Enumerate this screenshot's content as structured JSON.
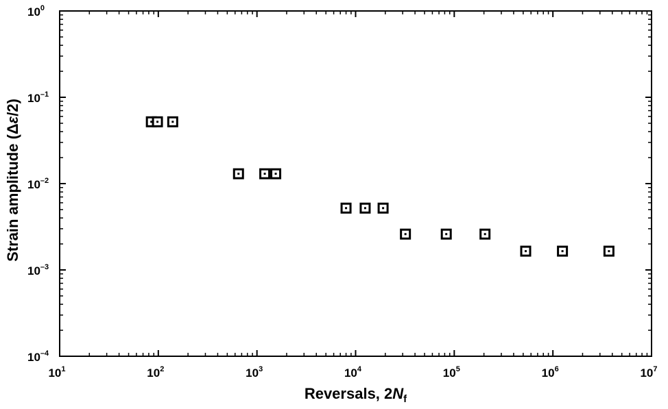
{
  "chart_data": {
    "type": "scatter",
    "title": "",
    "xlabel": "Reversals, 2N_f",
    "xlabel_parts": {
      "prefix": "Reversals, 2",
      "var": "N",
      "sub": "f"
    },
    "ylabel": "Strain amplitude (Δε/2)",
    "ylabel_parts": {
      "prefix": "Strain amplitude (Δ",
      "var": "ε",
      "suffix": "/2)"
    },
    "x_scale": "log",
    "y_scale": "log",
    "xlim": [
      10,
      10000000
    ],
    "ylim": [
      0.0001,
      1
    ],
    "x_ticks": [
      {
        "base": "10",
        "exp": "1"
      },
      {
        "base": "10",
        "exp": "2"
      },
      {
        "base": "10",
        "exp": "3"
      },
      {
        "base": "10",
        "exp": "4"
      },
      {
        "base": "10",
        "exp": "5"
      },
      {
        "base": "10",
        "exp": "6"
      },
      {
        "base": "10",
        "exp": "7"
      }
    ],
    "y_ticks": [
      {
        "base": "10",
        "exp": "0"
      },
      {
        "base": "10",
        "exp": "–1"
      },
      {
        "base": "10",
        "exp": "–2"
      },
      {
        "base": "10",
        "exp": "–3"
      },
      {
        "base": "10",
        "exp": "–4"
      }
    ],
    "grid": false,
    "marker": "square",
    "marker_color": "#000000",
    "points": [
      {
        "x": 85,
        "y": 0.052
      },
      {
        "x": 98,
        "y": 0.052
      },
      {
        "x": 140,
        "y": 0.052
      },
      {
        "x": 650,
        "y": 0.013
      },
      {
        "x": 1200,
        "y": 0.013
      },
      {
        "x": 1550,
        "y": 0.013
      },
      {
        "x": 8000,
        "y": 0.0052
      },
      {
        "x": 12500,
        "y": 0.0052
      },
      {
        "x": 19000,
        "y": 0.0052
      },
      {
        "x": 32000,
        "y": 0.0026
      },
      {
        "x": 83000,
        "y": 0.0026
      },
      {
        "x": 205000,
        "y": 0.0026
      },
      {
        "x": 530000,
        "y": 0.00165
      },
      {
        "x": 1250000,
        "y": 0.00165
      },
      {
        "x": 3700000,
        "y": 0.00165
      }
    ]
  }
}
